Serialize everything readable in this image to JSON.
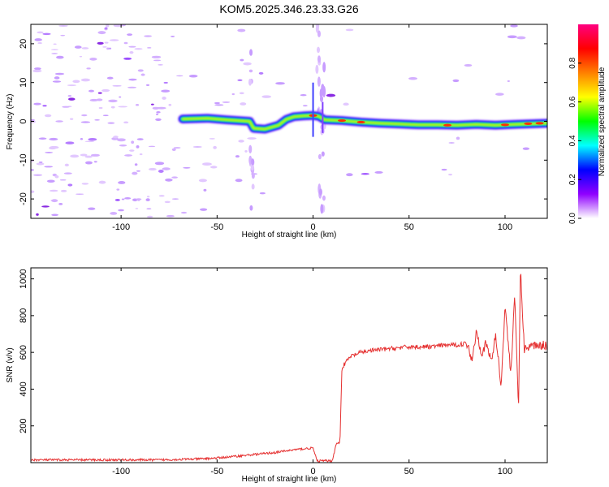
{
  "title": "KOM5.2025.346.23.33.G26",
  "chart_data": [
    {
      "type": "heatmap",
      "xlabel": "Height of straight line (km)",
      "ylabel": "Frequency (Hz)",
      "xlim": [
        -147,
        122
      ],
      "ylim": [
        -25,
        25
      ],
      "xticks": [
        -100,
        -50,
        0,
        50,
        100
      ],
      "yticks": [
        -20,
        -10,
        0,
        10,
        20
      ],
      "colorbar": {
        "label": "Normalized spectral amplitude",
        "ticks": [
          0.0,
          0.2,
          0.4,
          0.6,
          0.8
        ],
        "range": [
          0,
          1
        ],
        "colors": [
          "#ffffff",
          "#9000ff",
          "#0000ff",
          "#00ffff",
          "#00ff00",
          "#ffff00",
          "#ff8000",
          "#ff0000",
          "#ff0080"
        ]
      },
      "signal_track": [
        {
          "x": -68,
          "y": 0.6
        },
        {
          "x": -55,
          "y": 0.8
        },
        {
          "x": -45,
          "y": 0.4
        },
        {
          "x": -33,
          "y": 0.0
        },
        {
          "x": -31,
          "y": -1.8
        },
        {
          "x": -25,
          "y": -2.0
        },
        {
          "x": -18,
          "y": -1.0
        },
        {
          "x": -14,
          "y": 0.5
        },
        {
          "x": -10,
          "y": 1.2
        },
        {
          "x": -5,
          "y": 1.4
        },
        {
          "x": 0,
          "y": 1.5
        },
        {
          "x": 3,
          "y": 1.3
        },
        {
          "x": 6,
          "y": 0.4
        },
        {
          "x": 15,
          "y": 0.2
        },
        {
          "x": 25,
          "y": -0.2
        },
        {
          "x": 35,
          "y": -0.5
        },
        {
          "x": 45,
          "y": -0.7
        },
        {
          "x": 55,
          "y": -0.9
        },
        {
          "x": 65,
          "y": -0.9
        },
        {
          "x": 75,
          "y": -1.0
        },
        {
          "x": 85,
          "y": -0.8
        },
        {
          "x": 95,
          "y": -1.0
        },
        {
          "x": 105,
          "y": -0.8
        },
        {
          "x": 122,
          "y": -0.5
        }
      ]
    },
    {
      "type": "line",
      "xlabel": "Height of straight line (km)",
      "ylabel": "SNR (v/v)",
      "xlim": [
        -147,
        122
      ],
      "ylim": [
        0,
        1060
      ],
      "xticks": [
        -100,
        -50,
        0,
        50,
        100
      ],
      "yticks": [
        200,
        400,
        600,
        800,
        1000
      ],
      "series_color": "#e53030",
      "series": [
        {
          "x": [
            -147,
            -120,
            -100,
            -80,
            -60,
            -50,
            -40,
            -30,
            -20,
            -10,
            -5,
            0,
            2,
            5,
            8,
            10,
            12,
            14,
            15,
            16,
            18,
            20,
            25,
            30,
            40,
            50,
            60,
            70,
            75,
            80,
            83,
            85,
            88,
            90,
            93,
            95,
            98,
            100,
            103,
            105,
            107,
            108,
            110,
            115,
            122
          ],
          "y": [
            15,
            15,
            15,
            15,
            20,
            25,
            35,
            45,
            55,
            70,
            75,
            80,
            10,
            10,
            10,
            10,
            100,
            110,
            510,
            530,
            560,
            580,
            600,
            610,
            620,
            630,
            630,
            640,
            640,
            650,
            560,
            720,
            590,
            650,
            550,
            700,
            420,
            860,
            480,
            920,
            280,
            1060,
            620,
            640,
            640
          ]
        }
      ]
    }
  ]
}
